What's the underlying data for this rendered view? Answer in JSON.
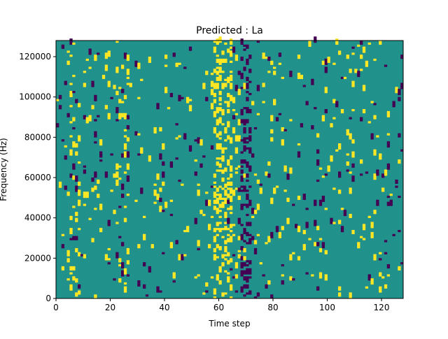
{
  "chart_data": {
    "type": "heatmap",
    "title": "Predicted : La",
    "xlabel": "Time step",
    "ylabel": "Frequency (Hz)",
    "xlim": [
      0,
      128
    ],
    "ylim": [
      0,
      128000
    ],
    "x_ticks": [
      0,
      20,
      40,
      60,
      80,
      100,
      120
    ],
    "y_ticks": [
      0,
      20000,
      40000,
      60000,
      80000,
      100000,
      120000
    ],
    "grid": false,
    "colormap": "viridis",
    "colors": {
      "background": "#21918c",
      "high": "#fde725",
      "low": "#440154"
    },
    "columns": 128,
    "rows": 128,
    "seed": 1337
  }
}
